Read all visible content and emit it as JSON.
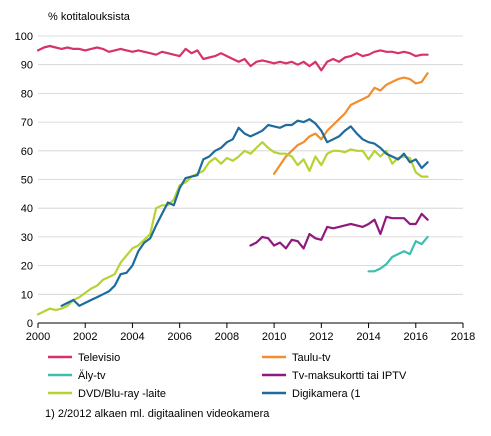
{
  "chart_data": {
    "type": "line",
    "title": "",
    "ylabel": "% kotitalouksista",
    "xlabel": "",
    "xlim": [
      2000,
      2018
    ],
    "ylim": [
      0,
      100
    ],
    "x_ticks": [
      2000,
      2002,
      2004,
      2006,
      2008,
      2010,
      2012,
      2014,
      2016,
      2018
    ],
    "x_tick_labels": [
      "2000",
      "2002",
      "2004",
      "2006",
      "2008",
      "2010",
      "2012",
      "2014",
      "2016",
      "2018"
    ],
    "y_ticks": [
      0,
      10,
      20,
      30,
      40,
      50,
      60,
      70,
      80,
      90,
      100
    ],
    "y_tick_labels": [
      "0",
      "10",
      "20",
      "30",
      "40",
      "50",
      "60",
      "70",
      "80",
      "90",
      "100"
    ],
    "grid": true,
    "legend_placement": "bottom",
    "footnote": "1) 2/2012 alkaen ml. digitaalinen videokamera",
    "series": [
      {
        "name": "Televisio",
        "color": "#d6336c",
        "points": [
          [
            2000.0,
            95
          ],
          [
            2000.25,
            96
          ],
          [
            2000.5,
            96.5
          ],
          [
            2000.75,
            96
          ],
          [
            2001.0,
            95.5
          ],
          [
            2001.25,
            96
          ],
          [
            2001.5,
            95.5
          ],
          [
            2001.75,
            95.5
          ],
          [
            2002.0,
            95
          ],
          [
            2002.25,
            95.5
          ],
          [
            2002.5,
            96
          ],
          [
            2002.75,
            95.5
          ],
          [
            2003.0,
            94.5
          ],
          [
            2003.25,
            95
          ],
          [
            2003.5,
            95.5
          ],
          [
            2003.75,
            95
          ],
          [
            2004.0,
            94.5
          ],
          [
            2004.25,
            95
          ],
          [
            2004.5,
            94.5
          ],
          [
            2004.75,
            94
          ],
          [
            2005.0,
            93.5
          ],
          [
            2005.25,
            94.5
          ],
          [
            2005.5,
            94
          ],
          [
            2005.75,
            93.5
          ],
          [
            2006.0,
            93
          ],
          [
            2006.25,
            95.5
          ],
          [
            2006.5,
            94
          ],
          [
            2006.75,
            95
          ],
          [
            2007.0,
            92
          ],
          [
            2007.25,
            92.5
          ],
          [
            2007.5,
            93
          ],
          [
            2007.75,
            94
          ],
          [
            2008.0,
            93
          ],
          [
            2008.25,
            92
          ],
          [
            2008.5,
            91
          ],
          [
            2008.75,
            92
          ],
          [
            2009.0,
            89.5
          ],
          [
            2009.25,
            91
          ],
          [
            2009.5,
            91.5
          ],
          [
            2009.75,
            91
          ],
          [
            2010.0,
            90.5
          ],
          [
            2010.25,
            91
          ],
          [
            2010.5,
            90.5
          ],
          [
            2010.75,
            91
          ],
          [
            2011.0,
            90
          ],
          [
            2011.25,
            91
          ],
          [
            2011.5,
            89.5
          ],
          [
            2011.75,
            91
          ],
          [
            2012.0,
            88
          ],
          [
            2012.25,
            91
          ],
          [
            2012.5,
            92
          ],
          [
            2012.75,
            91
          ],
          [
            2013.0,
            92.5
          ],
          [
            2013.25,
            93
          ],
          [
            2013.5,
            94
          ],
          [
            2013.75,
            93
          ],
          [
            2014.0,
            93.5
          ],
          [
            2014.25,
            94.5
          ],
          [
            2014.5,
            95
          ],
          [
            2014.75,
            94.5
          ],
          [
            2015.0,
            94.5
          ],
          [
            2015.25,
            94
          ],
          [
            2015.5,
            94.5
          ],
          [
            2015.75,
            94
          ],
          [
            2016.0,
            93
          ],
          [
            2016.25,
            93.5
          ],
          [
            2016.5,
            93.5
          ]
        ]
      },
      {
        "name": "Taulu-tv",
        "color": "#f28e2b",
        "points": [
          [
            2010.0,
            52
          ],
          [
            2010.25,
            55
          ],
          [
            2010.5,
            58
          ],
          [
            2010.75,
            60
          ],
          [
            2011.0,
            62
          ],
          [
            2011.25,
            63
          ],
          [
            2011.5,
            65
          ],
          [
            2011.75,
            66
          ],
          [
            2012.0,
            64
          ],
          [
            2012.25,
            67
          ],
          [
            2012.5,
            69
          ],
          [
            2012.75,
            71
          ],
          [
            2013.0,
            73
          ],
          [
            2013.25,
            76
          ],
          [
            2013.5,
            77
          ],
          [
            2013.75,
            78
          ],
          [
            2014.0,
            79
          ],
          [
            2014.25,
            82
          ],
          [
            2014.5,
            81
          ],
          [
            2014.75,
            83
          ],
          [
            2015.0,
            84
          ],
          [
            2015.25,
            85
          ],
          [
            2015.5,
            85.5
          ],
          [
            2015.75,
            85
          ],
          [
            2016.0,
            83.5
          ],
          [
            2016.25,
            84
          ],
          [
            2016.5,
            87
          ]
        ]
      },
      {
        "name": "Äly-tv",
        "color": "#3dbfac",
        "points": [
          [
            2014.0,
            18
          ],
          [
            2014.25,
            18
          ],
          [
            2014.5,
            19
          ],
          [
            2014.75,
            20.5
          ],
          [
            2015.0,
            23
          ],
          [
            2015.25,
            24
          ],
          [
            2015.5,
            25
          ],
          [
            2015.75,
            24
          ],
          [
            2016.0,
            28.5
          ],
          [
            2016.25,
            27.5
          ],
          [
            2016.5,
            30
          ]
        ]
      },
      {
        "name": "Tv-maksukortti tai IPTV",
        "color": "#8e1a7e",
        "points": [
          [
            2009.0,
            27
          ],
          [
            2009.25,
            28
          ],
          [
            2009.5,
            30
          ],
          [
            2009.75,
            29.5
          ],
          [
            2010.0,
            27
          ],
          [
            2010.25,
            28
          ],
          [
            2010.5,
            26
          ],
          [
            2010.75,
            29
          ],
          [
            2011.0,
            28.5
          ],
          [
            2011.25,
            26
          ],
          [
            2011.5,
            31
          ],
          [
            2011.75,
            29.5
          ],
          [
            2012.0,
            29
          ],
          [
            2012.25,
            33.5
          ],
          [
            2012.5,
            33
          ],
          [
            2012.75,
            33.5
          ],
          [
            2013.0,
            34
          ],
          [
            2013.25,
            34.5
          ],
          [
            2013.5,
            34
          ],
          [
            2013.75,
            33.5
          ],
          [
            2014.0,
            34.5
          ],
          [
            2014.25,
            36
          ],
          [
            2014.5,
            31
          ],
          [
            2014.75,
            37
          ],
          [
            2015.0,
            36.5
          ],
          [
            2015.25,
            36.5
          ],
          [
            2015.5,
            36.5
          ],
          [
            2015.75,
            34.5
          ],
          [
            2016.0,
            34.5
          ],
          [
            2016.25,
            38
          ],
          [
            2016.5,
            36
          ]
        ]
      },
      {
        "name": "DVD/Blu-ray -laite",
        "color": "#b5d333",
        "points": [
          [
            2000.0,
            3
          ],
          [
            2000.25,
            4
          ],
          [
            2000.5,
            5
          ],
          [
            2000.75,
            4.5
          ],
          [
            2001.0,
            5
          ],
          [
            2001.25,
            6
          ],
          [
            2001.5,
            8
          ],
          [
            2001.75,
            9
          ],
          [
            2002.0,
            10.5
          ],
          [
            2002.25,
            12
          ],
          [
            2002.5,
            13
          ],
          [
            2002.75,
            15
          ],
          [
            2003.0,
            16
          ],
          [
            2003.25,
            17
          ],
          [
            2003.5,
            21
          ],
          [
            2003.75,
            23.5
          ],
          [
            2004.0,
            26
          ],
          [
            2004.25,
            27
          ],
          [
            2004.5,
            29
          ],
          [
            2004.75,
            31
          ],
          [
            2005.0,
            40
          ],
          [
            2005.25,
            41
          ],
          [
            2005.5,
            41
          ],
          [
            2005.75,
            43
          ],
          [
            2006.0,
            48
          ],
          [
            2006.25,
            49
          ],
          [
            2006.5,
            51
          ],
          [
            2006.75,
            52
          ],
          [
            2007.0,
            53
          ],
          [
            2007.25,
            56
          ],
          [
            2007.5,
            57.5
          ],
          [
            2007.75,
            55.5
          ],
          [
            2008.0,
            57.5
          ],
          [
            2008.25,
            56.5
          ],
          [
            2008.5,
            58
          ],
          [
            2008.75,
            60
          ],
          [
            2009.0,
            59
          ],
          [
            2009.25,
            61
          ],
          [
            2009.5,
            63
          ],
          [
            2009.75,
            61
          ],
          [
            2010.0,
            59.5
          ],
          [
            2010.25,
            59
          ],
          [
            2010.5,
            59
          ],
          [
            2010.75,
            58
          ],
          [
            2011.0,
            55
          ],
          [
            2011.25,
            57
          ],
          [
            2011.5,
            53
          ],
          [
            2011.75,
            58
          ],
          [
            2012.0,
            55
          ],
          [
            2012.25,
            59
          ],
          [
            2012.5,
            60
          ],
          [
            2012.75,
            60
          ],
          [
            2013.0,
            59.5
          ],
          [
            2013.25,
            60.5
          ],
          [
            2013.5,
            60
          ],
          [
            2013.75,
            60
          ],
          [
            2014.0,
            57
          ],
          [
            2014.25,
            60
          ],
          [
            2014.5,
            58
          ],
          [
            2014.75,
            60
          ],
          [
            2015.0,
            55.5
          ],
          [
            2015.25,
            57.5
          ],
          [
            2015.5,
            58
          ],
          [
            2015.75,
            57.5
          ],
          [
            2016.0,
            52.5
          ],
          [
            2016.25,
            51
          ],
          [
            2016.5,
            51
          ]
        ]
      },
      {
        "name": "Digikamera (1",
        "color": "#1f6b9c",
        "points": [
          [
            2001.0,
            6
          ],
          [
            2001.25,
            7
          ],
          [
            2001.5,
            8
          ],
          [
            2001.75,
            6
          ],
          [
            2002.0,
            7
          ],
          [
            2002.25,
            8
          ],
          [
            2002.5,
            9
          ],
          [
            2002.75,
            10
          ],
          [
            2003.0,
            11
          ],
          [
            2003.25,
            13
          ],
          [
            2003.5,
            17
          ],
          [
            2003.75,
            17.5
          ],
          [
            2004.0,
            20
          ],
          [
            2004.25,
            25
          ],
          [
            2004.5,
            28
          ],
          [
            2004.75,
            29.5
          ],
          [
            2005.0,
            34
          ],
          [
            2005.25,
            38
          ],
          [
            2005.5,
            42
          ],
          [
            2005.75,
            41
          ],
          [
            2006.0,
            47
          ],
          [
            2006.25,
            50.5
          ],
          [
            2006.5,
            51
          ],
          [
            2006.75,
            51.5
          ],
          [
            2007.0,
            57
          ],
          [
            2007.25,
            58
          ],
          [
            2007.5,
            60
          ],
          [
            2007.75,
            61
          ],
          [
            2008.0,
            63
          ],
          [
            2008.25,
            64
          ],
          [
            2008.5,
            68
          ],
          [
            2008.75,
            66
          ],
          [
            2009.0,
            65
          ],
          [
            2009.25,
            66
          ],
          [
            2009.5,
            67
          ],
          [
            2009.75,
            69
          ],
          [
            2010.0,
            68.5
          ],
          [
            2010.25,
            68
          ],
          [
            2010.5,
            69
          ],
          [
            2010.75,
            69
          ],
          [
            2011.0,
            70.5
          ],
          [
            2011.25,
            70
          ],
          [
            2011.5,
            71
          ],
          [
            2011.75,
            69.5
          ],
          [
            2012.0,
            67
          ],
          [
            2012.25,
            63
          ],
          [
            2012.5,
            64
          ],
          [
            2012.75,
            65
          ],
          [
            2013.0,
            67
          ],
          [
            2013.25,
            68.5
          ],
          [
            2013.5,
            66
          ],
          [
            2013.75,
            64
          ],
          [
            2014.0,
            63
          ],
          [
            2014.25,
            62.5
          ],
          [
            2014.5,
            61
          ],
          [
            2014.75,
            59
          ],
          [
            2015.0,
            58
          ],
          [
            2015.25,
            57
          ],
          [
            2015.5,
            59
          ],
          [
            2015.75,
            56
          ],
          [
            2016.0,
            57
          ],
          [
            2016.25,
            54
          ],
          [
            2016.5,
            56
          ]
        ]
      }
    ]
  }
}
